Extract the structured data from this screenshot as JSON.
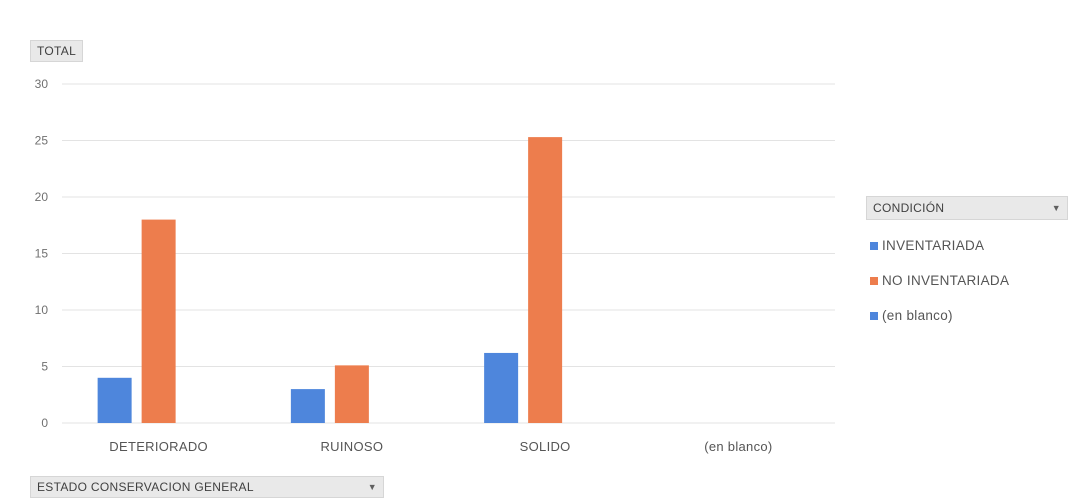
{
  "pivot": {
    "value_field": "TOTAL",
    "axis_field": "ESTADO CONSERVACION GENERAL",
    "legend_field": "CONDICIÓN"
  },
  "icons": {
    "dropdown": "chevron-down-icon"
  },
  "chart_data": {
    "type": "bar",
    "categories": [
      "DETERIORADO",
      "RUINOSO",
      "SOLIDO",
      "(en blanco)"
    ],
    "series": [
      {
        "name": "INVENTARIADA",
        "color": "#4e86dc",
        "values": [
          4,
          3,
          6.2,
          0
        ]
      },
      {
        "name": "NO INVENTARIADA",
        "color": "#ed7d4d",
        "values": [
          18,
          5.1,
          25.3,
          0
        ]
      },
      {
        "name": "(en blanco)",
        "color": "#4e86dc",
        "values": [
          0,
          0,
          0,
          0
        ]
      }
    ],
    "y_ticks": [
      0,
      5,
      10,
      15,
      20,
      25,
      30
    ],
    "ylim": [
      0,
      30
    ],
    "grid": true,
    "legend_position": "right"
  }
}
